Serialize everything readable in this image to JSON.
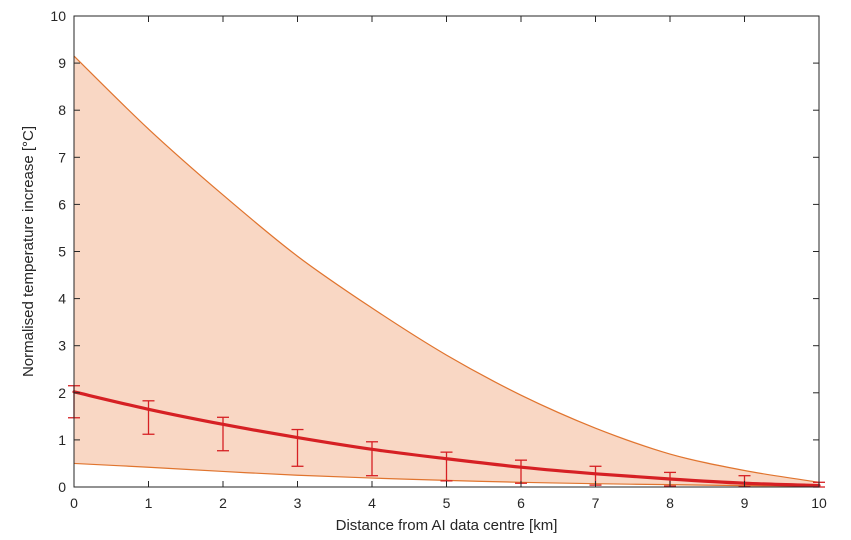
{
  "chart_data": {
    "type": "line",
    "title": "",
    "xlabel": "Distance from AI data centre [km]",
    "ylabel": "Normalised temperature increase [°C]",
    "xlim": [
      0,
      10
    ],
    "ylim": [
      0,
      10
    ],
    "x_ticks": [
      "0",
      "1",
      "2",
      "3",
      "4",
      "5",
      "6",
      "7",
      "8",
      "9",
      "10"
    ],
    "y_ticks": [
      "0",
      "1",
      "2",
      "3",
      "4",
      "5",
      "6",
      "7",
      "8",
      "9",
      "10"
    ],
    "grid": false,
    "colors": {
      "band_fill": "#f9d7c4",
      "band_edge": "#e0742e",
      "mean_line": "#d62024",
      "axis": "#262626"
    },
    "band": {
      "x": [
        0,
        1,
        2,
        3,
        4,
        5,
        6,
        7,
        8,
        9,
        10
      ],
      "upper": [
        9.15,
        7.6,
        6.2,
        4.9,
        3.8,
        2.8,
        1.95,
        1.25,
        0.7,
        0.35,
        0.1
      ],
      "lower": [
        0.5,
        0.42,
        0.33,
        0.25,
        0.19,
        0.14,
        0.1,
        0.07,
        0.05,
        0.03,
        0.02
      ]
    },
    "mean": {
      "x": [
        0,
        1,
        2,
        3,
        4,
        5,
        6,
        7,
        8,
        9,
        10
      ],
      "y": [
        2.02,
        1.65,
        1.33,
        1.05,
        0.8,
        0.6,
        0.42,
        0.28,
        0.17,
        0.08,
        0.03
      ]
    },
    "error_bars": [
      {
        "x": 0,
        "low": 1.47,
        "high": 2.15
      },
      {
        "x": 1,
        "low": 1.12,
        "high": 1.83
      },
      {
        "x": 2,
        "low": 0.77,
        "high": 1.48
      },
      {
        "x": 3,
        "low": 0.44,
        "high": 1.22
      },
      {
        "x": 4,
        "low": 0.24,
        "high": 0.96
      },
      {
        "x": 5,
        "low": 0.13,
        "high": 0.74
      },
      {
        "x": 6,
        "low": 0.08,
        "high": 0.57
      },
      {
        "x": 7,
        "low": 0.04,
        "high": 0.44
      },
      {
        "x": 8,
        "low": 0.02,
        "high": 0.31
      },
      {
        "x": 9,
        "low": 0.01,
        "high": 0.24
      },
      {
        "x": 10,
        "low": 0.0,
        "high": 0.1
      }
    ]
  }
}
